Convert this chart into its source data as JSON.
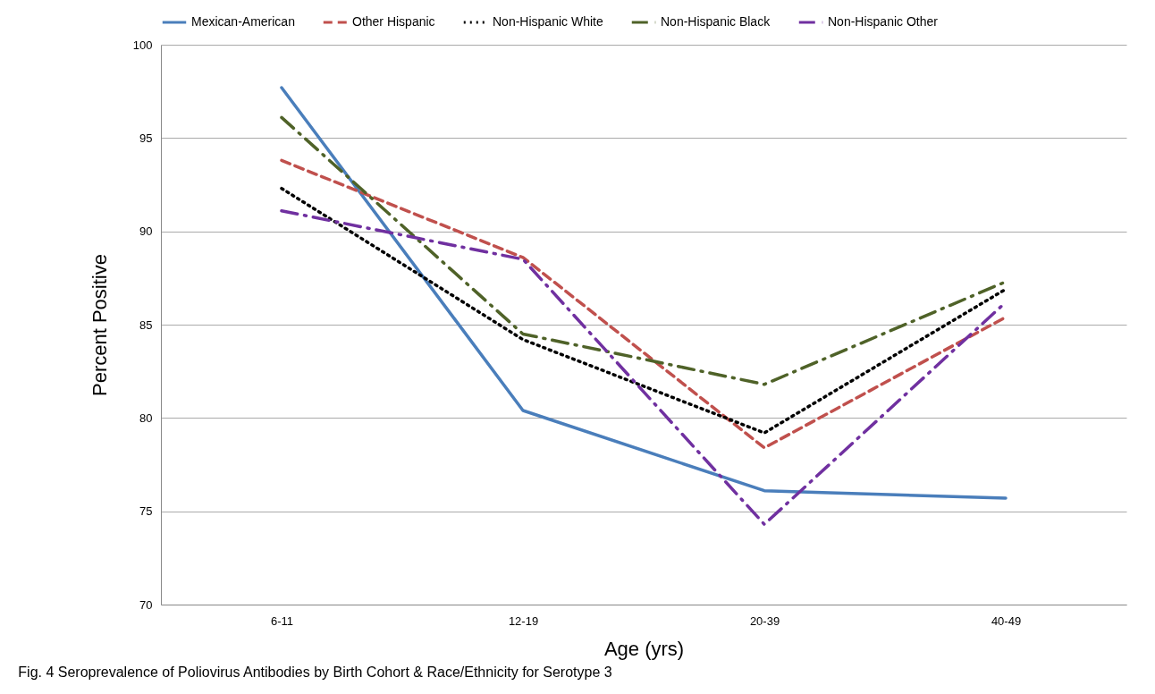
{
  "chart_data": {
    "type": "line",
    "title": "Fig. 4 Seroprevalence of Poliovirus Antibodies by Birth Cohort & Race/Ethnicity for Serotype 3",
    "xlabel": "Age (yrs)",
    "ylabel": "Percent Positive",
    "categories": [
      "6-11",
      "12-19",
      "20-39",
      "40-49"
    ],
    "series": [
      {
        "name": "Mexican-American",
        "color": "#4a7ebb",
        "line_style": "solid",
        "values": [
          97.7,
          80.4,
          76.1,
          75.7
        ]
      },
      {
        "name": "Other Hispanic",
        "color": "#c0504d",
        "line_style": "dashed",
        "values": [
          93.8,
          88.6,
          78.4,
          85.4
        ]
      },
      {
        "name": "Non-Hispanic White",
        "color": "#000000",
        "line_style": "dotted",
        "values": [
          92.3,
          84.2,
          79.2,
          86.9
        ]
      },
      {
        "name": "Non-Hispanic Black",
        "color": "#4f6228",
        "line_style": "dashdot",
        "values": [
          96.1,
          84.5,
          81.8,
          87.3
        ]
      },
      {
        "name": "Non-Hispanic Other",
        "color": "#7030a0",
        "line_style": "dashdot",
        "values": [
          91.1,
          88.5,
          74.3,
          86.2
        ]
      }
    ],
    "ylim": [
      70,
      100
    ],
    "yticks": [
      70,
      75,
      80,
      85,
      90,
      95,
      100
    ],
    "grid": "y",
    "legend": "top",
    "marker": "none"
  }
}
